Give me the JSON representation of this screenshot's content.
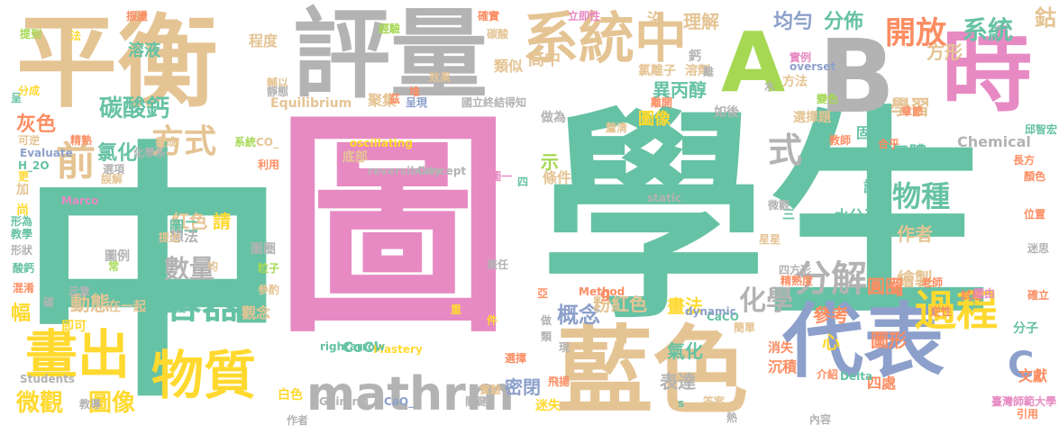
{
  "palette": {
    "green": "#66c2a5",
    "pink": "#e78ac3",
    "tan": "#e5c494",
    "gray": "#b3b3b3",
    "lime": "#a6d854",
    "yellow": "#ffd92f",
    "orange": "#fc8d62",
    "blue": "#8da0cb"
  },
  "words": [
    {
      "text": "學生",
      "color": "green"
    },
    {
      "text": "中",
      "color": "green"
    },
    {
      "text": "圖",
      "color": "pink"
    },
    {
      "text": "平衡",
      "color": "tan"
    },
    {
      "text": "評量",
      "color": "gray"
    },
    {
      "text": "藍色",
      "color": "tan"
    },
    {
      "text": "代表",
      "color": "blue"
    },
    {
      "text": "時",
      "color": "pink"
    },
    {
      "text": "B",
      "color": "gray"
    },
    {
      "text": "A",
      "color": "lime"
    },
    {
      "text": "系統",
      "color": "tan"
    },
    {
      "text": "中",
      "color": "tan"
    },
    {
      "text": "mathrm",
      "color": "gray"
    },
    {
      "text": "物質",
      "color": "yellow"
    },
    {
      "text": "畫出",
      "color": "yellow"
    },
    {
      "text": "容器",
      "color": "green"
    },
    {
      "text": "過程",
      "color": "yellow"
    },
    {
      "text": "分解",
      "color": "gray"
    },
    {
      "text": "方式",
      "color": "tan"
    },
    {
      "text": "前",
      "color": "tan"
    },
    {
      "text": "開放",
      "color": "orange"
    },
    {
      "text": "系統",
      "color": "green"
    },
    {
      "text": "C",
      "color": "blue"
    },
    {
      "text": "式",
      "color": "gray"
    },
    {
      "text": "物種",
      "color": "green"
    },
    {
      "text": "化學",
      "color": "gray"
    },
    {
      "text": "數量",
      "color": "gray"
    },
    {
      "text": "微觀",
      "color": "yellow"
    },
    {
      "text": "圖像",
      "color": "yellow"
    },
    {
      "text": "碳酸鈣",
      "color": "green"
    },
    {
      "text": "概念",
      "color": "blue"
    },
    {
      "text": "動態",
      "color": "tan"
    },
    {
      "text": "均勻",
      "color": "blue"
    },
    {
      "text": "分佈",
      "color": "green"
    },
    {
      "text": "學習",
      "color": "tan"
    },
    {
      "text": "氣體",
      "color": "green"
    },
    {
      "text": "異丙醇",
      "color": "green"
    },
    {
      "text": "圖像",
      "color": "yellow"
    },
    {
      "text": "理解",
      "color": "tan"
    },
    {
      "text": "沒",
      "color": "tan"
    },
    {
      "text": "氯化",
      "color": "green"
    },
    {
      "text": "紅色",
      "color": "tan"
    },
    {
      "text": "幅",
      "color": "yellow"
    },
    {
      "text": "方形",
      "color": "tan"
    },
    {
      "text": "鈷",
      "color": "tan"
    },
    {
      "text": "粉紅色",
      "color": "tan"
    },
    {
      "text": "圖形",
      "color": "orange"
    },
    {
      "text": "作者",
      "color": "tan"
    },
    {
      "text": "繪製",
      "color": "tan"
    },
    {
      "text": "參考",
      "color": "orange"
    },
    {
      "text": "畫法",
      "color": "yellow"
    },
    {
      "text": "表達",
      "color": "gray"
    },
    {
      "text": "圓圈",
      "color": "orange"
    },
    {
      "text": "密閉",
      "color": "blue"
    },
    {
      "text": "Equilibrium",
      "color": "tan"
    },
    {
      "text": "Chemical",
      "color": "gray"
    },
    {
      "text": "水分子",
      "color": "green"
    },
    {
      "text": "灰色",
      "color": "orange"
    },
    {
      "text": "氣化",
      "color": "green"
    },
    {
      "text": "請",
      "color": "yellow"
    },
    {
      "text": "圖二",
      "color": "green"
    },
    {
      "text": "想法",
      "color": "gray"
    },
    {
      "text": "觀念",
      "color": "tan"
    },
    {
      "text": "CoCl",
      "color": "green"
    },
    {
      "text": "提到",
      "color": "lime"
    },
    {
      "text": "振盪",
      "color": "orange"
    },
    {
      "text": "確實",
      "color": "orange"
    },
    {
      "text": "高中",
      "color": "tan"
    },
    {
      "text": "立即性",
      "color": "pink"
    },
    {
      "text": "碳酸",
      "color": "tan"
    },
    {
      "text": "溶液",
      "color": "green"
    },
    {
      "text": "程度",
      "color": "tan"
    },
    {
      "text": "類似",
      "color": "tan"
    },
    {
      "text": "鈣",
      "color": "gray"
    },
    {
      "text": "實例",
      "color": "pink"
    },
    {
      "text": "overset",
      "color": "blue"
    },
    {
      "text": "溶劑",
      "color": "tan"
    },
    {
      "text": "難",
      "color": "gray"
    },
    {
      "text": "氯離子",
      "color": "tan"
    },
    {
      "text": "方法",
      "color": "tan"
    },
    {
      "text": "變色",
      "color": "lime"
    },
    {
      "text": "經驗",
      "color": "lime"
    },
    {
      "text": "章節",
      "color": "orange"
    },
    {
      "text": "示",
      "color": "lime"
    },
    {
      "text": "條件",
      "color": "tan"
    },
    {
      "text": "離開",
      "color": "orange"
    },
    {
      "text": "聚集",
      "color": "tan"
    },
    {
      "text": "固體",
      "color": "green"
    },
    {
      "text": "合乎",
      "color": "orange"
    },
    {
      "text": "邱智宏",
      "color": "green"
    },
    {
      "text": "診斷",
      "color": "green"
    },
    {
      "text": "三",
      "color": "green"
    },
    {
      "text": "四處",
      "color": "orange"
    },
    {
      "text": "心",
      "color": "yellow"
    },
    {
      "text": "沉積",
      "color": "orange"
    },
    {
      "text": "消失",
      "color": "orange"
    },
    {
      "text": "文獻",
      "color": "orange"
    },
    {
      "text": "分子",
      "color": "green"
    },
    {
      "text": "迷失",
      "color": "yellow"
    },
    {
      "text": "白色",
      "color": "yellow"
    },
    {
      "text": "實驗",
      "color": "tan"
    },
    {
      "text": "Students",
      "color": "gray"
    },
    {
      "text": "教導",
      "color": "gray"
    },
    {
      "text": "作者",
      "color": "gray"
    },
    {
      "text": "Ghirardi",
      "color": "gray"
    },
    {
      "text": "CaO_",
      "color": "blue"
    },
    {
      "text": "Mastery",
      "color": "yellow"
    },
    {
      "text": "rightarrow",
      "color": "green"
    },
    {
      "text": "星星",
      "color": "tan"
    },
    {
      "text": "CaCO",
      "color": "green"
    },
    {
      "text": "dynamic",
      "color": "blue"
    },
    {
      "text": "Method",
      "color": "orange"
    },
    {
      "text": "static",
      "color": "gray"
    },
    {
      "text": "Delta",
      "color": "green"
    },
    {
      "text": "oscillating",
      "color": "yellow"
    },
    {
      "text": "reversibility",
      "color": "gray"
    },
    {
      "text": "Concept",
      "color": "gray"
    },
    {
      "text": "Marco",
      "color": "pink"
    },
    {
      "text": "Evaluate",
      "color": "blue"
    },
    {
      "text": "H_2O",
      "color": "green"
    },
    {
      "text": "可逆",
      "color": "tan"
    },
    {
      "text": "系統",
      "color": "lime"
    },
    {
      "text": "畫成",
      "color": "tan"
    },
    {
      "text": "底部",
      "color": "tan"
    },
    {
      "text": "加",
      "color": "tan"
    },
    {
      "text": "尚",
      "color": "yellow"
    },
    {
      "text": "更",
      "color": "yellow"
    },
    {
      "text": "呈",
      "color": "green"
    },
    {
      "text": "分成",
      "color": "yellow"
    },
    {
      "text": "酸鈣",
      "color": "green"
    },
    {
      "text": "混淆",
      "color": "orange"
    },
    {
      "text": "教學",
      "color": "green"
    },
    {
      "text": "形狀",
      "color": "gray"
    },
    {
      "text": "形為",
      "color": "green"
    },
    {
      "text": "利用",
      "color": "orange"
    },
    {
      "text": "選項",
      "color": "gray"
    },
    {
      "text": "誤解",
      "color": "tan"
    },
    {
      "text": "精熟",
      "color": "orange"
    },
    {
      "text": "化學系",
      "color": "gray"
    },
    {
      "text": "CO_",
      "color": "tan"
    },
    {
      "text": "輔以",
      "color": "tan"
    },
    {
      "text": "靜態",
      "color": "gray"
    },
    {
      "text": "效果",
      "color": "tan"
    },
    {
      "text": "呈現",
      "color": "blue"
    },
    {
      "text": "國立",
      "color": "gray"
    },
    {
      "text": "終結",
      "color": "gray"
    },
    {
      "text": "得知",
      "color": "gray"
    },
    {
      "text": "做為",
      "color": "gray"
    },
    {
      "text": "釐清",
      "color": "tan"
    },
    {
      "text": "如後",
      "color": "gray"
    },
    {
      "text": "選擇題",
      "color": "tan"
    },
    {
      "text": "教師",
      "color": "orange"
    },
    {
      "text": "長方",
      "color": "orange"
    },
    {
      "text": "顏色",
      "color": "orange"
    },
    {
      "text": "微觀",
      "color": "gray"
    },
    {
      "text": "強化",
      "color": "green"
    },
    {
      "text": "提出",
      "color": "tan"
    },
    {
      "text": "圖圈",
      "color": "gray"
    },
    {
      "text": "粒子",
      "color": "lime"
    },
    {
      "text": "參酌",
      "color": "tan"
    },
    {
      "text": "即可",
      "color": "yellow"
    },
    {
      "text": "在一起",
      "color": "tan"
    },
    {
      "text": "困擾",
      "color": "green"
    },
    {
      "text": "圖例",
      "color": "gray"
    },
    {
      "text": "示意",
      "color": "gray"
    },
    {
      "text": "碳",
      "color": "gray"
    },
    {
      "text": "件",
      "color": "yellow"
    },
    {
      "text": "做",
      "color": "gray"
    },
    {
      "text": "類",
      "color": "gray"
    },
    {
      "text": "現",
      "color": "gray"
    },
    {
      "text": "選擇",
      "color": "orange"
    },
    {
      "text": "關鍵",
      "color": "gray"
    },
    {
      "text": "飛揚",
      "color": "orange"
    },
    {
      "text": "亞",
      "color": "orange"
    },
    {
      "text": "重",
      "color": "yellow"
    },
    {
      "text": "兼任",
      "color": "gray"
    },
    {
      "text": "圖一",
      "color": "pink"
    },
    {
      "text": "四",
      "color": "green"
    },
    {
      "text": "g",
      "color": "orange"
    },
    {
      "text": "s",
      "color": "green"
    },
    {
      "text": "答案",
      "color": "tan"
    },
    {
      "text": "熱",
      "color": "gray"
    },
    {
      "text": "簡單",
      "color": "tan"
    },
    {
      "text": "內容",
      "color": "gray"
    },
    {
      "text": "精熟度",
      "color": "orange"
    },
    {
      "text": "四方形",
      "color": "gray"
    },
    {
      "text": "介紹",
      "color": "orange"
    },
    {
      "text": "唯",
      "color": "orange"
    },
    {
      "text": "老師",
      "color": "orange"
    },
    {
      "text": "試題",
      "color": "orange"
    },
    {
      "text": "理由",
      "color": "pink"
    },
    {
      "text": "逆性",
      "color": "orange"
    },
    {
      "text": "臺灣師範大學",
      "color": "pink"
    },
    {
      "text": "引用",
      "color": "orange"
    },
    {
      "text": "位置",
      "color": "orange"
    },
    {
      "text": "迷思",
      "color": "gray"
    },
    {
      "text": "確立",
      "color": "orange"
    },
    {
      "text": "堆",
      "color": "orange"
    },
    {
      "text": "茲",
      "color": "orange"
    },
    {
      "text": "法",
      "color": "yellow"
    },
    {
      "text": "水",
      "color": "gray"
    },
    {
      "text": "常",
      "color": "lime"
    },
    {
      "text": "均",
      "color": "tan"
    }
  ]
}
